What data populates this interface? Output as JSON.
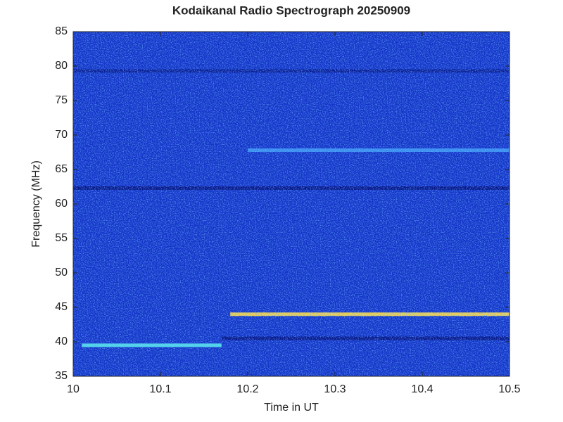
{
  "chart_data": {
    "type": "spectrogram",
    "title": "Kodaikanal Radio Spectrograph  20250909",
    "x_label": "Time in UT",
    "y_label": "Frequency (MHz)",
    "xlim": [
      10,
      10.5
    ],
    "xticks": [
      10,
      10.1,
      10.2,
      10.3,
      10.4,
      10.5
    ],
    "ylim": [
      35,
      85
    ],
    "yticks": [
      35,
      40,
      45,
      50,
      55,
      60,
      65,
      70,
      75,
      80,
      85
    ],
    "background_color": "#1434c8",
    "bands": [
      {
        "x": [
          10.18,
          10.5
        ],
        "y": 44,
        "color": "#f0d050"
      },
      {
        "x": [
          10.01,
          10.17
        ],
        "y": 39.5,
        "color": "#50d8e8"
      },
      {
        "x": [
          10,
          10.5
        ],
        "y": 62.3,
        "color": "#06148a"
      },
      {
        "x": [
          10.17,
          10.5
        ],
        "y": 40.5,
        "color": "#06148a"
      },
      {
        "x": [
          10.2,
          10.5
        ],
        "y": 67.8,
        "color": "#3a8ef0"
      },
      {
        "x": [
          10,
          10.5
        ],
        "y": 79.3,
        "color": "#0a1e9a"
      }
    ]
  }
}
